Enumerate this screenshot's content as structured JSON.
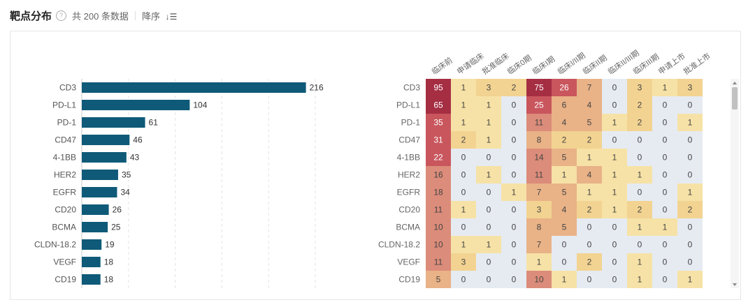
{
  "header": {
    "title": "靶点分布",
    "help_icon": "question-circle-icon",
    "count_text": "共 200 条数据",
    "sort_label": "降序",
    "sort_icon": "sort-descending-icon"
  },
  "chart_data": [
    {
      "type": "bar",
      "orientation": "horizontal",
      "categories": [
        "CD3",
        "PD-L1",
        "PD-1",
        "CD47",
        "4-1BB",
        "HER2",
        "EGFR",
        "CD20",
        "BCMA",
        "CLDN-18.2",
        "VEGF",
        "CD19"
      ],
      "values": [
        216,
        104,
        61,
        46,
        43,
        35,
        34,
        26,
        25,
        19,
        18,
        18
      ],
      "xlim": [
        0,
        225
      ],
      "grid": true,
      "color": "#0e5a78"
    },
    {
      "type": "heatmap",
      "columns": [
        "临床前",
        "申请临床",
        "批准临床",
        "临床0期",
        "临床I期",
        "临床I/II期",
        "临床II期",
        "临床II/III期",
        "临床III期",
        "申请上市",
        "批准上市"
      ],
      "rows": [
        "CD3",
        "PD-L1",
        "PD-1",
        "CD47",
        "4-1BB",
        "HER2",
        "EGFR",
        "CD20",
        "BCMA",
        "CLDN-18.2",
        "VEGF",
        "CD19"
      ],
      "values": [
        [
          95,
          1,
          3,
          2,
          75,
          26,
          7,
          0,
          3,
          1,
          3
        ],
        [
          65,
          1,
          1,
          0,
          25,
          6,
          4,
          0,
          2,
          0,
          0
        ],
        [
          35,
          1,
          1,
          0,
          11,
          4,
          5,
          1,
          2,
          0,
          1
        ],
        [
          31,
          2,
          1,
          0,
          8,
          2,
          2,
          0,
          0,
          0,
          0
        ],
        [
          22,
          0,
          0,
          0,
          14,
          5,
          1,
          1,
          0,
          0,
          0
        ],
        [
          16,
          0,
          1,
          0,
          11,
          1,
          4,
          1,
          1,
          0,
          0
        ],
        [
          18,
          0,
          0,
          1,
          7,
          5,
          1,
          1,
          0,
          0,
          1
        ],
        [
          11,
          1,
          0,
          0,
          3,
          4,
          2,
          1,
          2,
          0,
          2
        ],
        [
          10,
          0,
          0,
          0,
          8,
          5,
          0,
          0,
          1,
          1,
          0
        ],
        [
          10,
          1,
          1,
          0,
          7,
          0,
          0,
          0,
          0,
          0,
          0
        ],
        [
          11,
          3,
          0,
          0,
          1,
          0,
          2,
          0,
          1,
          0,
          0
        ],
        [
          5,
          0,
          0,
          0,
          10,
          1,
          0,
          0,
          1,
          0,
          1
        ]
      ],
      "colors": {
        "zero": "#e6ebf2",
        "scale": [
          "#f6e2a6",
          "#f2d391",
          "#e9b287",
          "#dc8c7a",
          "#c9565d",
          "#a52e43"
        ]
      }
    }
  ]
}
